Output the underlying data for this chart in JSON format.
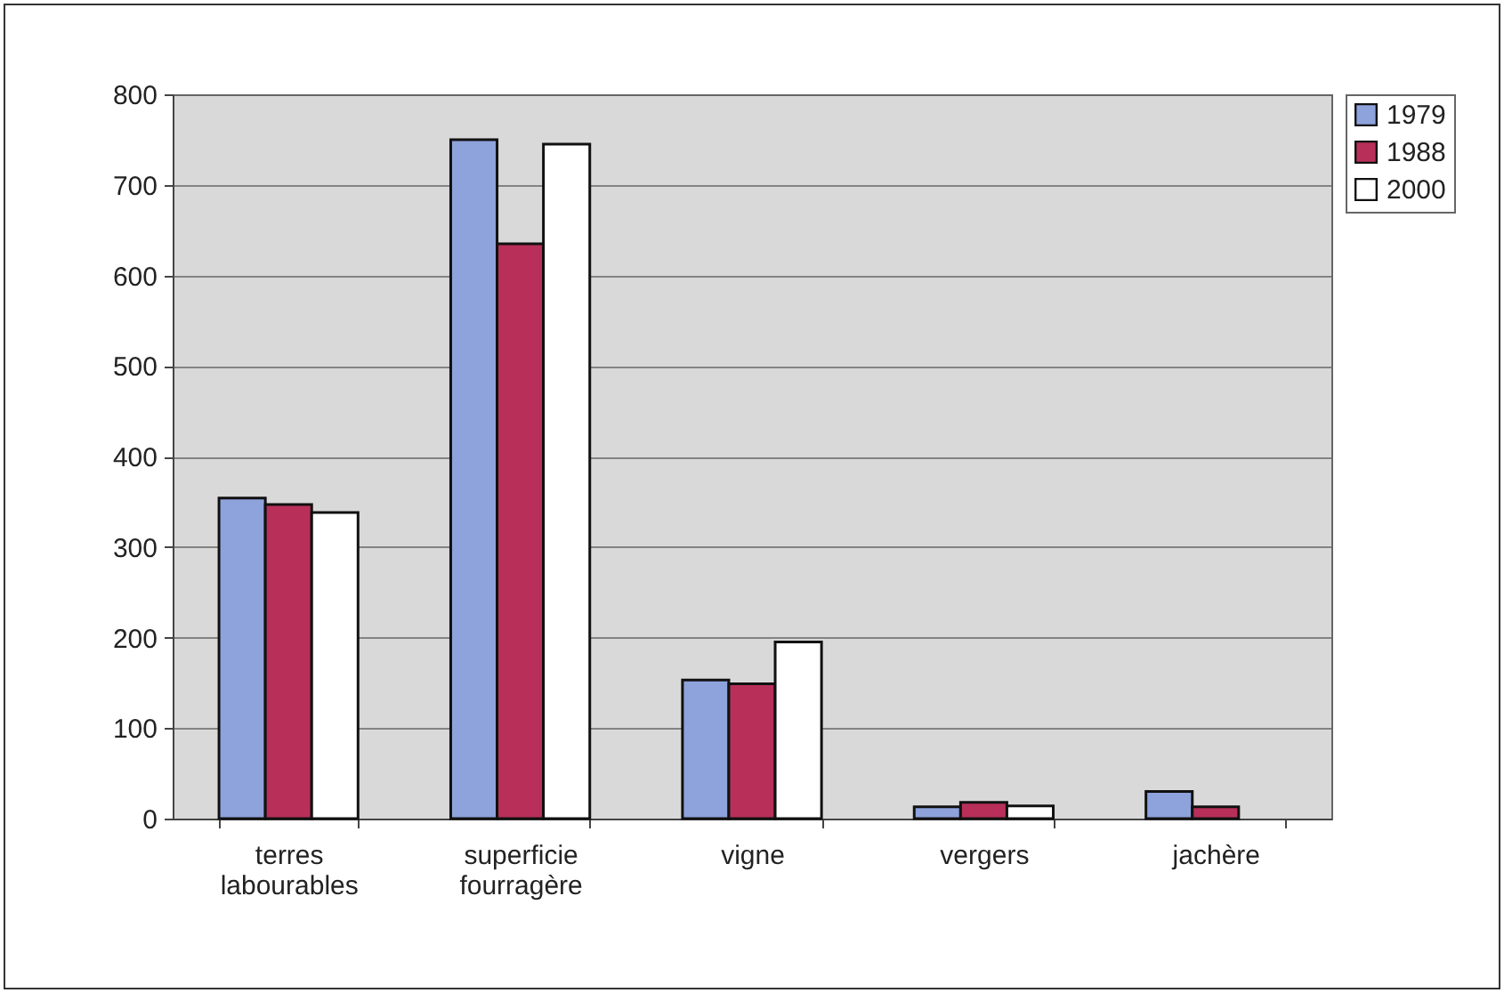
{
  "chart_data": {
    "type": "bar",
    "categories": [
      "terres labourables",
      "superficie fourragère",
      "vigne",
      "vergers",
      "jachère"
    ],
    "series": [
      {
        "name": "1979",
        "color": "#8ea2dc",
        "values": [
          354,
          750,
          153,
          13,
          30
        ]
      },
      {
        "name": "1988",
        "color": "#b8305a",
        "values": [
          347,
          635,
          149,
          18,
          13
        ]
      },
      {
        "name": "2000",
        "color": "#ffffff",
        "values": [
          338,
          745,
          195,
          14,
          null
        ]
      }
    ],
    "ylim": [
      0,
      800
    ],
    "yticks": [
      0,
      100,
      200,
      300,
      400,
      500,
      600,
      700,
      800
    ],
    "grid": "y",
    "legend": "right"
  }
}
